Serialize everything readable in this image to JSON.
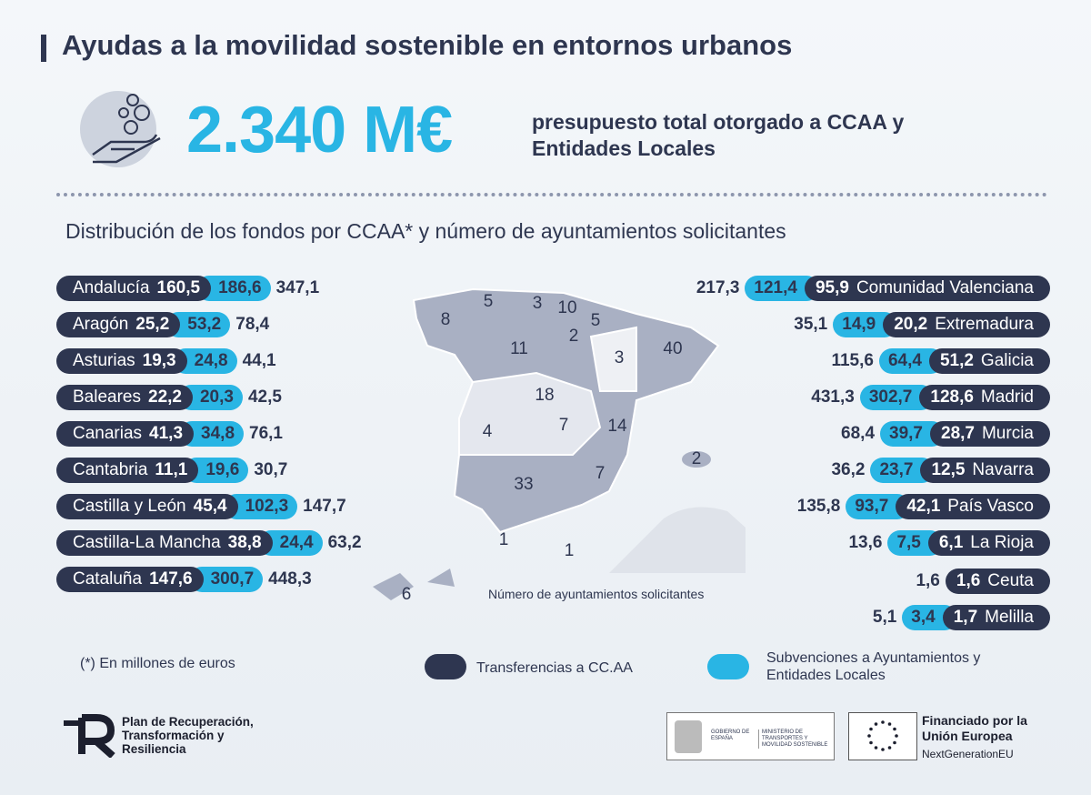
{
  "header": {
    "title": "Ayudas a la movilidad sostenible en entornos urbanos"
  },
  "budget": {
    "amount": "2.340 M€",
    "description": "presupuesto total otorgado a CCAA y Entidades Locales"
  },
  "subtitle": "Distribución de los fondos por CCAA* y número de ayuntamientos solicitantes",
  "regions_left": [
    {
      "name": "Andalucía",
      "transfer": "160,5",
      "subsidy": "186,6",
      "total": "347,1"
    },
    {
      "name": "Aragón",
      "transfer": "25,2",
      "subsidy": "53,2",
      "total": "78,4"
    },
    {
      "name": "Asturias",
      "transfer": "19,3",
      "subsidy": "24,8",
      "total": "44,1"
    },
    {
      "name": "Baleares",
      "transfer": "22,2",
      "subsidy": "20,3",
      "total": "42,5"
    },
    {
      "name": "Canarias",
      "transfer": "41,3",
      "subsidy": "34,8",
      "total": "76,1"
    },
    {
      "name": "Cantabria",
      "transfer": "11,1",
      "subsidy": "19,6",
      "total": "30,7"
    },
    {
      "name": "Castilla y León",
      "transfer": "45,4",
      "subsidy": "102,3",
      "total": "147,7"
    },
    {
      "name": "Castilla-La Mancha",
      "transfer": "38,8",
      "subsidy": "24,4",
      "total": "63,2"
    },
    {
      "name": "Cataluña",
      "transfer": "147,6",
      "subsidy": "300,7",
      "total": "448,3"
    }
  ],
  "regions_right": [
    {
      "name": "Comunidad Valenciana",
      "transfer": "95,9",
      "subsidy": "121,4",
      "total": "217,3"
    },
    {
      "name": "Extremadura",
      "transfer": "20,2",
      "subsidy": "14,9",
      "total": "35,1"
    },
    {
      "name": "Galicia",
      "transfer": "51,2",
      "subsidy": "64,4",
      "total": "115,6"
    },
    {
      "name": "Madrid",
      "transfer": "128,6",
      "subsidy": "302,7",
      "total": "431,3"
    },
    {
      "name": "Murcia",
      "transfer": "28,7",
      "subsidy": "39,7",
      "total": "68,4"
    },
    {
      "name": "Navarra",
      "transfer": "12,5",
      "subsidy": "23,7",
      "total": "36,2"
    },
    {
      "name": "País Vasco",
      "transfer": "42,1",
      "subsidy": "93,7",
      "total": "135,8"
    },
    {
      "name": "La Rioja",
      "transfer": "6,1",
      "subsidy": "7,5",
      "total": "13,6"
    },
    {
      "name": "Ceuta",
      "transfer": "1,6",
      "total": "1,6"
    },
    {
      "name": "Melilla",
      "transfer": "1,7",
      "subsidy": "3,4",
      "total": "5,1"
    }
  ],
  "map": {
    "counts": [
      "8",
      "5",
      "3",
      "10",
      "5",
      "2",
      "11",
      "3",
      "40",
      "18",
      "7",
      "4",
      "14",
      "2",
      "7",
      "33",
      "1",
      "1",
      "6"
    ],
    "caption": "Número de ayuntamientos solicitantes"
  },
  "footnote": "(*) En millones de euros",
  "legend": {
    "transfer": "Transferencias a CC.AA",
    "subsidy": "Subvenciones a Ayuntamientos y Entidades Locales"
  },
  "footer": {
    "plan": "Plan de Recuperación, Transformación y Resiliencia",
    "government": "GOBIERNO DE ESPAÑA",
    "ministry": "MINISTERIO DE TRANSPORTES Y MOVILIDAD SOSTENIBLE",
    "eu_funding": "Financiado por la Unión Europea",
    "eu_program": "NextGenerationEU"
  }
}
